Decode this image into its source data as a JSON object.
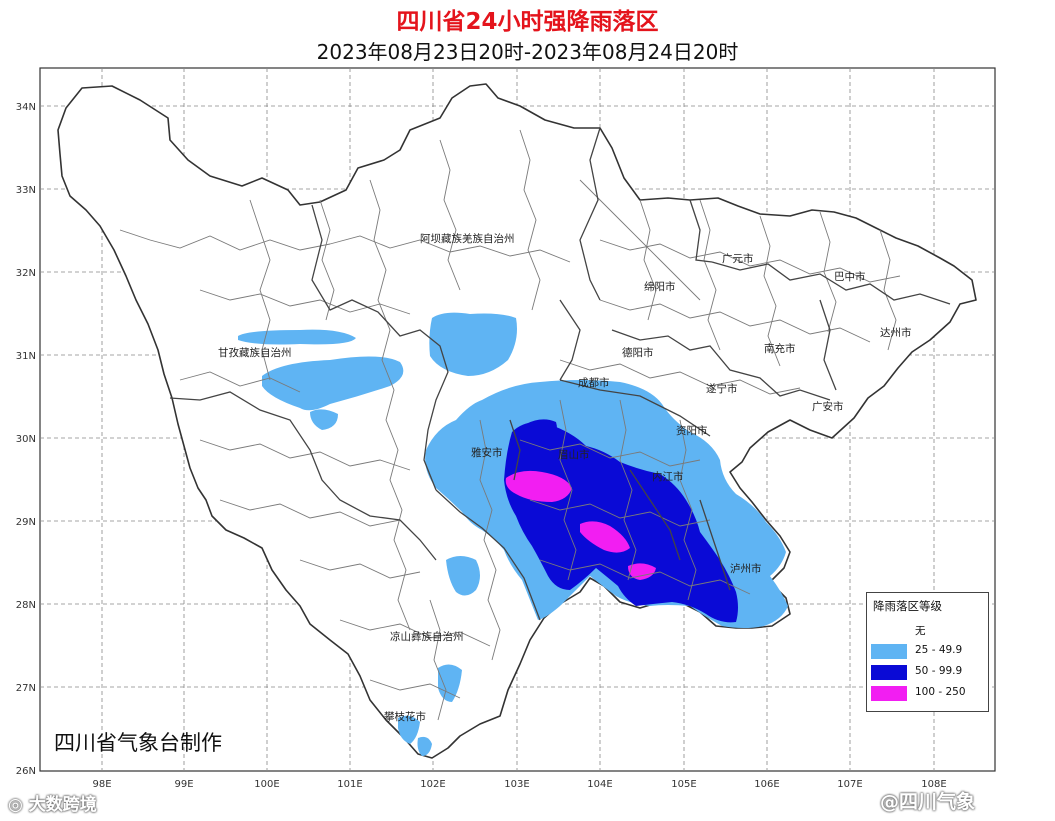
{
  "title": "四川省24小时强降雨落区",
  "subtitle": "2023年08月23日20时-2023年08月24日20时",
  "colors": {
    "title": "#e4141c",
    "none": "#ffffff",
    "light": "#5fb4f3",
    "heavy": "#0a0ad6",
    "extreme": "#f21ef2",
    "boundary": "#7a7a7a",
    "province_border": "#333333"
  },
  "lat_labels": [
    "34N",
    "33N",
    "32N",
    "31N",
    "30N",
    "29N",
    "28N",
    "27N",
    "26N"
  ],
  "lon_labels": [
    "98E",
    "99E",
    "100E",
    "101E",
    "102E",
    "103E",
    "104E",
    "105E",
    "106E",
    "107E",
    "108E"
  ],
  "cities": {
    "aba": "阿坝藏族羌族自治州",
    "ganzi": "甘孜藏族自治州",
    "guangyuan": "广元市",
    "bazhong": "巴中市",
    "mianyang": "绵阳市",
    "dazhou": "达州市",
    "deyang": "德阳市",
    "nanchong": "南充市",
    "chengdu": "成都市",
    "suining": "遂宁市",
    "guangan": "广安市",
    "ziyang": "资阳市",
    "yaan": "雅安市",
    "meishan": "眉山市",
    "neijiang": "内江市",
    "luzhou": "泸州市",
    "liangshan": "凉山彝族自治州",
    "panzhihua": "攀枝花市"
  },
  "credit": "四川省气象台制作",
  "legend": {
    "title": "降雨落区等级",
    "items": [
      {
        "label": "无",
        "color": "#ffffff"
      },
      {
        "label": "25 - 49.9",
        "color": "#5fb4f3"
      },
      {
        "label": "50 - 99.9",
        "color": "#0a0ad6"
      },
      {
        "label": "100 - 250",
        "color": "#f21ef2"
      }
    ]
  },
  "watermarks": {
    "left": "大数跨境",
    "right": "@四川气象"
  }
}
